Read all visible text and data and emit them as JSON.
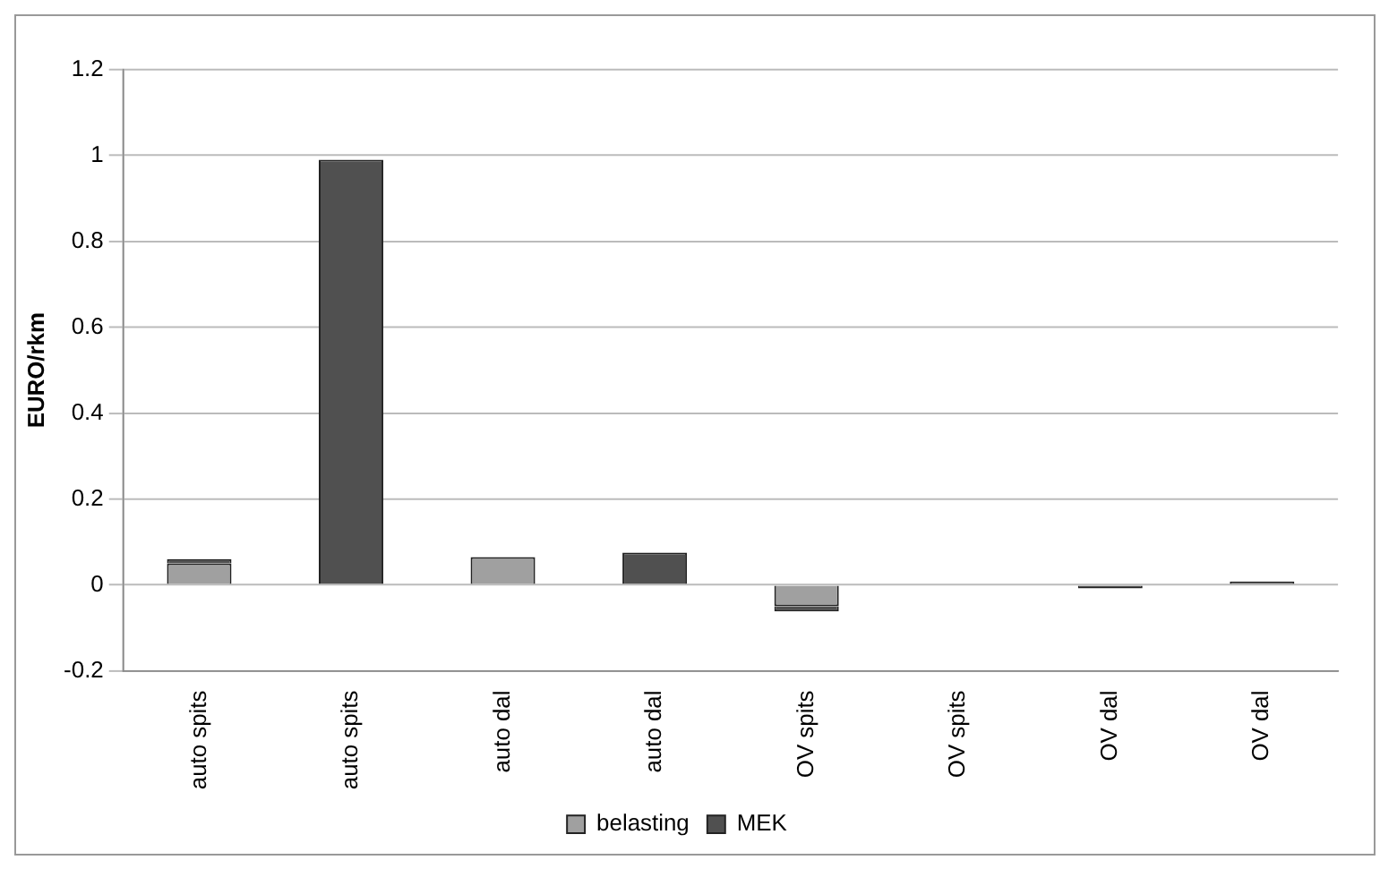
{
  "chart_data": {
    "type": "bar",
    "ylabel": "EURO/rkm",
    "stacked": true,
    "categories": [
      "auto spits",
      "auto spits",
      "auto dal",
      "auto dal",
      "OV spits",
      "OV spits",
      "OV dal",
      "OV dal"
    ],
    "series": [
      {
        "name": "belasting",
        "color": "#a0a0a0",
        "values": [
          0.05,
          null,
          0.065,
          null,
          -0.05,
          null,
          null,
          null
        ]
      },
      {
        "name": "MEK",
        "color": "#505050",
        "values": [
          0.01,
          0.99,
          null,
          0.075,
          -0.012,
          null,
          -0.008,
          0.008
        ]
      }
    ],
    "ylim": [
      -0.2,
      1.2
    ],
    "yticks": [
      -0.2,
      0,
      0.2,
      0.4,
      0.6,
      0.8,
      1,
      1.2
    ],
    "grid": "y",
    "legend": "bottom"
  }
}
